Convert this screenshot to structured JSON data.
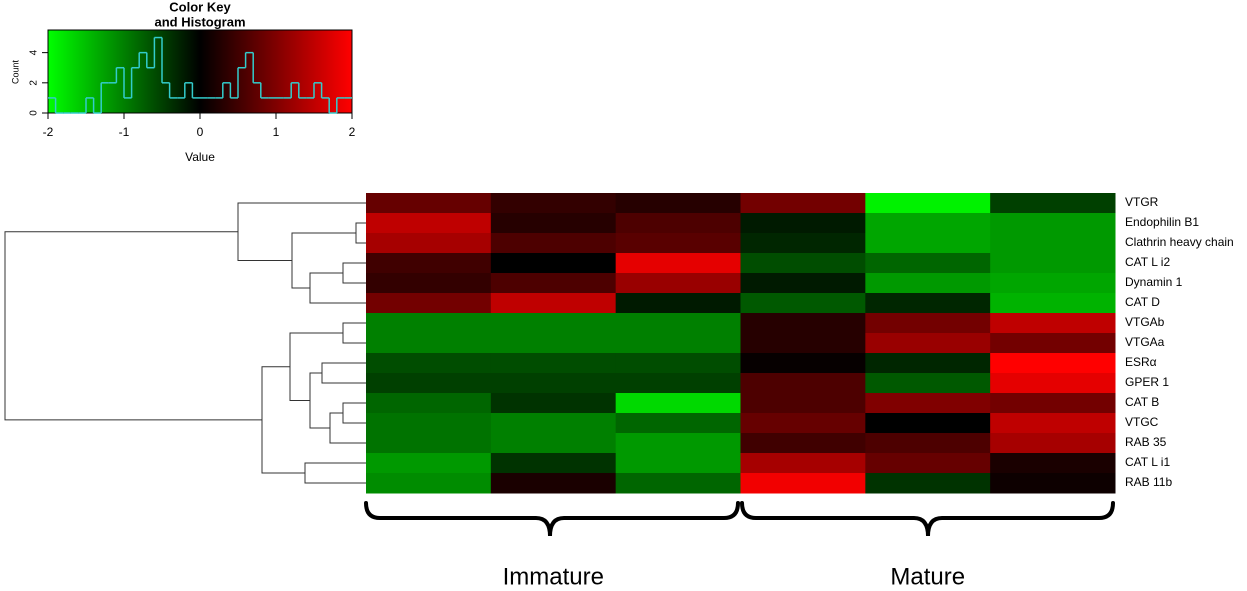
{
  "chart_data": [
    {
      "type": "histogram",
      "title": [
        "Color Key",
        "and Histogram"
      ],
      "x_label": "Value",
      "y_label": "Count",
      "bins": [
        -2,
        -1.9,
        -1.8,
        -1.7,
        -1.6,
        -1.5,
        -1.4,
        -1.3,
        -1.2,
        -1.1,
        -1,
        -0.9,
        -0.8,
        -0.7,
        -0.6,
        -0.5,
        -0.4,
        -0.3,
        -0.2,
        -0.1,
        0,
        0.1,
        0.2,
        0.3,
        0.4,
        0.5,
        0.6,
        0.7,
        0.8,
        0.9,
        1,
        1.1,
        1.2,
        1.3,
        1.4,
        1.5,
        1.6,
        1.7,
        1.8,
        1.9,
        2
      ],
      "values": [
        1,
        0,
        0,
        0,
        0,
        1,
        0,
        2,
        2,
        3,
        1,
        3,
        4,
        3,
        5,
        2,
        1,
        1,
        2,
        1,
        1,
        1,
        1,
        2,
        1,
        3,
        4,
        2,
        1,
        1,
        1,
        1,
        2,
        1,
        1,
        2,
        1,
        0,
        1,
        1
      ],
      "color": "#33cccc",
      "colorscale": [
        "#00ff00",
        "#000000",
        "#ff0000"
      ],
      "xlim": [
        -2,
        2
      ],
      "xticks": [
        -2,
        -1,
        0,
        1,
        2
      ],
      "ylim": [
        0,
        5.5
      ],
      "yticks": [
        0,
        2,
        4
      ]
    },
    {
      "type": "heatmap",
      "row_labels": [
        "VTGR",
        "Endophilin B1",
        "Clathrin heavy chain",
        "CAT L i2",
        "Dynamin 1",
        "CAT D",
        "VTGAb",
        "VTGAa",
        "ESRα",
        "GPER 1",
        "CAT B",
        "VTGC",
        "RAB 35",
        "CAT L i1",
        "RAB 11b"
      ],
      "group_labels": [
        "Immature",
        "Mature"
      ],
      "values": [
        [
          0.8,
          0.4,
          0.3,
          0.9,
          -1.9,
          -0.5
        ],
        [
          1.5,
          0.3,
          0.6,
          -0.2,
          -1.3,
          -1.2
        ],
        [
          1.3,
          0.6,
          0.7,
          -0.3,
          -1.3,
          -1.2
        ],
        [
          0.5,
          0,
          1.8,
          -0.6,
          -0.8,
          -1.2
        ],
        [
          0.4,
          0.6,
          1.2,
          -0.2,
          -1.2,
          -1.3
        ],
        [
          0.9,
          1.5,
          -0.2,
          -0.7,
          -0.3,
          -1.4
        ],
        [
          -1,
          -1,
          -1,
          0.3,
          0.9,
          1.5
        ],
        [
          -1,
          -1,
          -1,
          0.3,
          1.2,
          0.9
        ],
        [
          -0.6,
          -0.6,
          -0.6,
          0.05,
          -0.3,
          2
        ],
        [
          -0.5,
          -0.5,
          -0.5,
          0.6,
          -0.7,
          1.8
        ],
        [
          -0.8,
          -0.4,
          -1.7,
          0.6,
          1,
          0.9
        ],
        [
          -0.9,
          -1,
          -0.8,
          0.8,
          0,
          1.5
        ],
        [
          -0.9,
          -1,
          -1.2,
          0.5,
          0.6,
          1.3
        ],
        [
          -1.2,
          -0.4,
          -1.2,
          1.3,
          0.8,
          0.2
        ],
        [
          -1.1,
          0.2,
          -0.8,
          1.9,
          -0.4,
          0.1
        ]
      ]
    }
  ]
}
